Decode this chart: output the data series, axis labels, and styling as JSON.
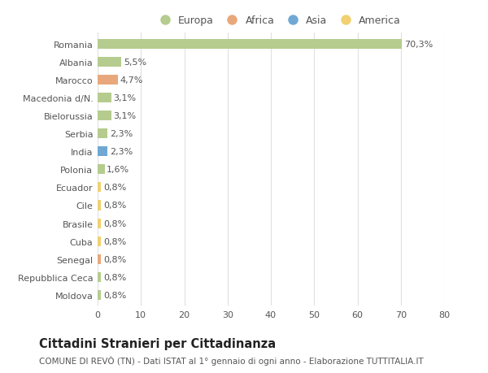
{
  "countries": [
    "Romania",
    "Albania",
    "Marocco",
    "Macedonia d/N.",
    "Bielorussia",
    "Serbia",
    "India",
    "Polonia",
    "Ecuador",
    "Cile",
    "Brasile",
    "Cuba",
    "Senegal",
    "Repubblica Ceca",
    "Moldova"
  ],
  "values": [
    70.3,
    5.5,
    4.7,
    3.1,
    3.1,
    2.3,
    2.3,
    1.6,
    0.8,
    0.8,
    0.8,
    0.8,
    0.8,
    0.8,
    0.8
  ],
  "labels": [
    "70,3%",
    "5,5%",
    "4,7%",
    "3,1%",
    "3,1%",
    "2,3%",
    "2,3%",
    "1,6%",
    "0,8%",
    "0,8%",
    "0,8%",
    "0,8%",
    "0,8%",
    "0,8%",
    "0,8%"
  ],
  "continents": [
    "Europa",
    "Europa",
    "Africa",
    "Europa",
    "Europa",
    "Europa",
    "Asia",
    "Europa",
    "America",
    "America",
    "America",
    "America",
    "Africa",
    "Europa",
    "Europa"
  ],
  "colors": {
    "Europa": "#b5cc8e",
    "Africa": "#e8a87c",
    "Asia": "#6fa8d4",
    "America": "#f0d070"
  },
  "xlim": [
    0,
    80
  ],
  "xticks": [
    0,
    10,
    20,
    30,
    40,
    50,
    60,
    70,
    80
  ],
  "title": "Cittadini Stranieri per Cittadinanza",
  "subtitle": "COMUNE DI REVÒ (TN) - Dati ISTAT al 1° gennaio di ogni anno - Elaborazione TUTTITALIA.IT",
  "background_color": "#ffffff",
  "grid_color": "#e0e0e0",
  "bar_height": 0.55,
  "label_fontsize": 8,
  "tick_fontsize": 8,
  "legend_fontsize": 9,
  "title_fontsize": 10.5,
  "subtitle_fontsize": 7.5
}
